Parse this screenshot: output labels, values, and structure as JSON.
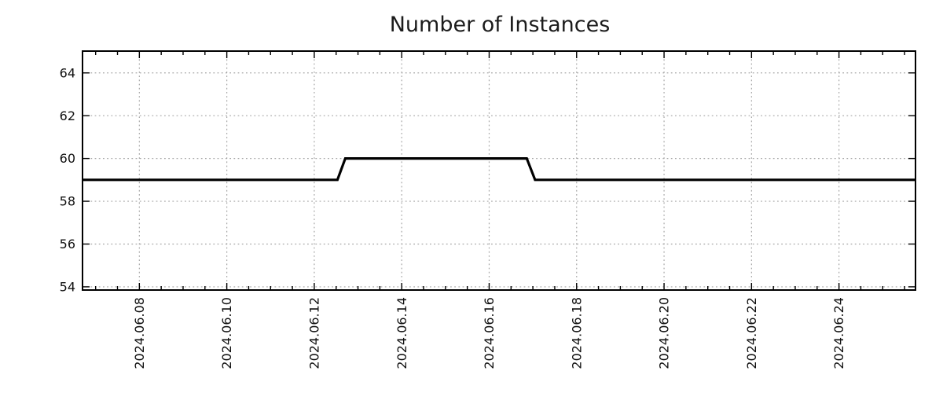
{
  "chart_data": {
    "type": "line",
    "title": "Number of Instances",
    "xlabel": "",
    "ylabel": "",
    "legend": "none",
    "background": "#ffffff",
    "axis_color": "#000000",
    "line_width": 3.2,
    "grid": {
      "style": "dotted",
      "color": "#a6a6a6",
      "on": true
    },
    "x_axis": {
      "unit": "date (day of June 2024; 12.5 = 2024-06-12 12:00)",
      "tick_labels": [
        "2024.06.08",
        "2024.06.10",
        "2024.06.12",
        "2024.06.14",
        "2024.06.16",
        "2024.06.18",
        "2024.06.20",
        "2024.06.22",
        "2024.06.24"
      ],
      "tick_days": [
        8,
        10,
        12,
        14,
        16,
        18,
        20,
        22,
        24
      ],
      "minor_tick_step_days": 0.5,
      "range_days": [
        6.7,
        25.75
      ],
      "label_rotation_deg": -90
    },
    "y_axis": {
      "ticks": [
        54,
        56,
        58,
        60,
        62,
        64
      ],
      "range": [
        53.85,
        65.02
      ]
    },
    "series": [
      {
        "name": "number-of-instances",
        "color": "#000000",
        "points_day_value": [
          [
            6.7,
            59
          ],
          [
            12.53,
            59
          ],
          [
            12.71,
            60
          ],
          [
            16.86,
            60
          ],
          [
            17.05,
            59
          ],
          [
            25.75,
            59
          ]
        ]
      }
    ],
    "segments_readable": [
      {
        "value": 59,
        "from": "plot start (~2024-06-06 17:00)",
        "to": "~2024-06-12 13:00"
      },
      {
        "value": 60,
        "from": "~2024-06-12 17:00",
        "to": "~2024-06-16 21:00"
      },
      {
        "value": 59,
        "from": "~2024-06-17 01:00",
        "to": "plot end (~2024-06-25 18:00)"
      }
    ]
  }
}
